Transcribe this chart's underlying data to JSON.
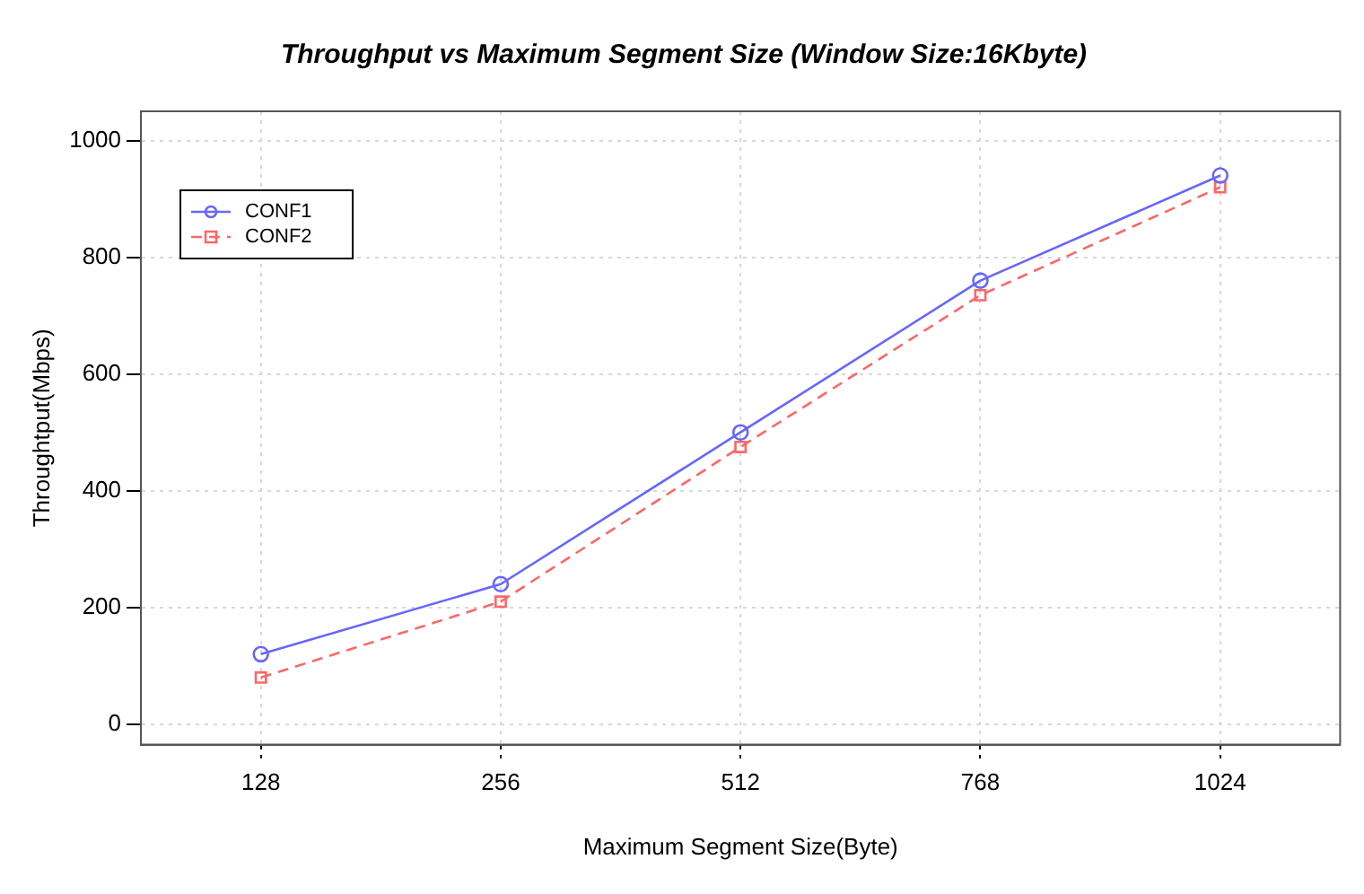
{
  "chart_data": {
    "type": "line",
    "title": "Throughput vs Maximum Segment Size (Window Size:16Kbyte)",
    "xlabel": "Maximum Segment Size(Byte)",
    "ylabel": "Throughtput(Mbps)",
    "categories": [
      "128",
      "256",
      "512",
      "768",
      "1024"
    ],
    "series": [
      {
        "name": "CONF1",
        "color": "#6666ff",
        "values": [
          120,
          240,
          500,
          760,
          940
        ],
        "marker": "circle",
        "line_style": "solid"
      },
      {
        "name": "CONF2",
        "color": "#ff6666",
        "values": [
          80,
          210,
          475,
          735,
          920
        ],
        "marker": "square",
        "line_style": "dashed"
      }
    ],
    "ylim": [
      -35,
      1050
    ],
    "yticks": [
      0,
      200,
      400,
      600,
      800,
      1000
    ],
    "grid": true,
    "legend": "top left"
  }
}
